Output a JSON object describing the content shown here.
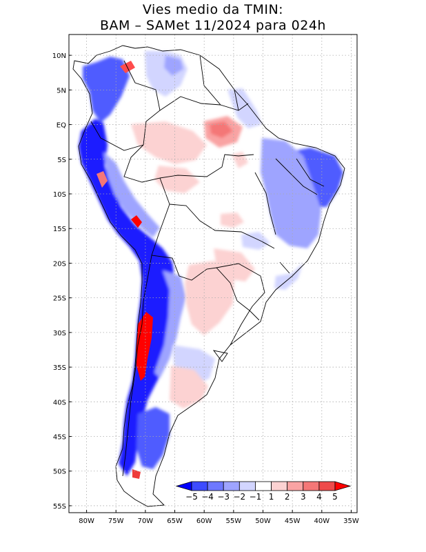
{
  "title": {
    "line1": "Vies medio da TMIN:",
    "line2": "BAM – SAMet 11/2024  para 024h"
  },
  "axes": {
    "lat_labels": [
      "10N",
      "5N",
      "EQ",
      "5S",
      "10S",
      "15S",
      "20S",
      "25S",
      "30S",
      "35S",
      "40S",
      "45S",
      "50S",
      "55S"
    ],
    "lat_values": [
      10,
      5,
      0,
      -5,
      -10,
      -15,
      -20,
      -25,
      -30,
      -35,
      -40,
      -45,
      -50,
      -55
    ],
    "lon_labels": [
      "80W",
      "75W",
      "70W",
      "65W",
      "60W",
      "55W",
      "50W",
      "45W",
      "40W",
      "35W"
    ],
    "lon_values": [
      -80,
      -75,
      -70,
      -65,
      -60,
      -55,
      -50,
      -45,
      -40,
      -35
    ],
    "lon_range": [
      -83,
      -34
    ],
    "lat_range": [
      13,
      -56
    ]
  },
  "colorbar": {
    "labels": [
      "−5",
      "−4",
      "−3",
      "−2",
      "−1",
      "1",
      "2",
      "3",
      "4",
      "5"
    ],
    "colors": [
      "#0000ff",
      "#3d4bff",
      "#6e78ff",
      "#9ea4ff",
      "#d2d5ff",
      "#ffffff",
      "#fcd2d2",
      "#f9a3a3",
      "#f47777",
      "#ee4a4a",
      "#ff0000"
    ]
  },
  "colors": {
    "strong_cold": "#1a1aff",
    "cold": "#4f5cff",
    "cool": "#9ea4ff",
    "light_cool": "#d2d5ff",
    "light_warm": "#fcd2d2",
    "warm": "#f9a3a3",
    "hot": "#ee3b3b",
    "extreme_hot": "#ff0000"
  }
}
